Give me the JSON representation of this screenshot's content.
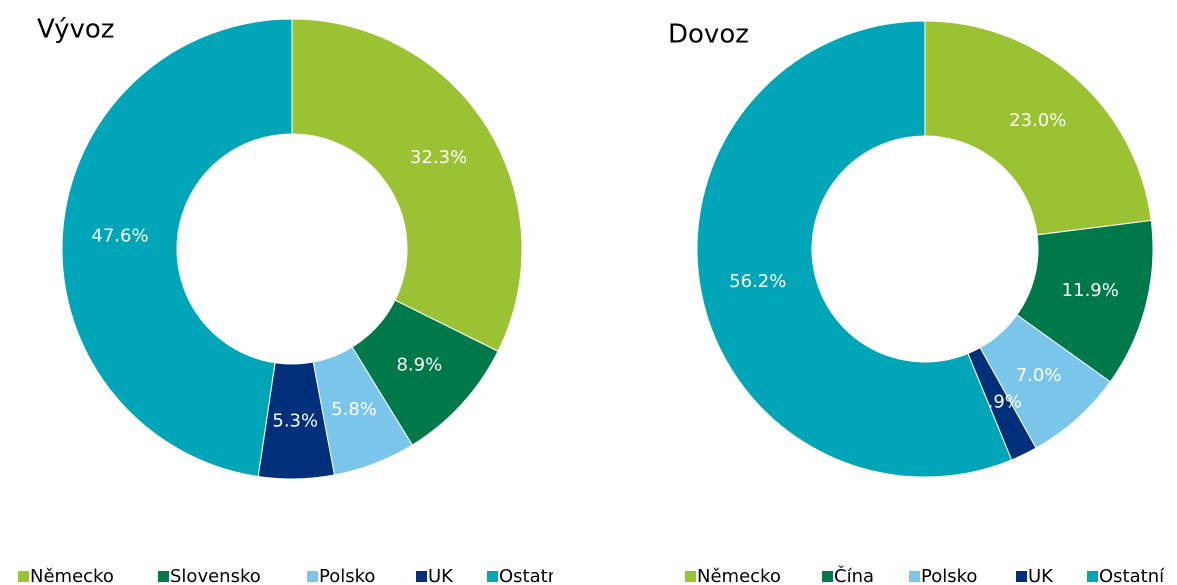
{
  "chart_data": [
    {
      "type": "pie",
      "title": "Vývoz",
      "categories": [
        "Německo",
        "Slovensko",
        "Polsko",
        "UK",
        "Ostatní"
      ],
      "values": [
        32.3,
        8.9,
        5.8,
        5.3,
        47.6
      ],
      "value_labels": [
        "32.3%",
        "8.9%",
        "5.8%",
        "5.3%",
        "47.6%"
      ],
      "colors": [
        "#9bc232",
        "#00794a",
        "#7ac5ea",
        "#00307a",
        "#00a6b8"
      ],
      "legend": "bottom"
    },
    {
      "type": "pie",
      "title": "Dovoz",
      "categories": [
        "Německo",
        "Čína",
        "Polsko",
        "UK",
        "Ostatní"
      ],
      "values": [
        23.0,
        11.9,
        7.0,
        1.9,
        56.2
      ],
      "value_labels": [
        "23.0%",
        "11.9%",
        "7.0%",
        "1.9%",
        "56.2%"
      ],
      "colors": [
        "#9bc232",
        "#00794a",
        "#7ac5ea",
        "#00307a",
        "#00a6b8"
      ],
      "legend": "bottom"
    }
  ]
}
